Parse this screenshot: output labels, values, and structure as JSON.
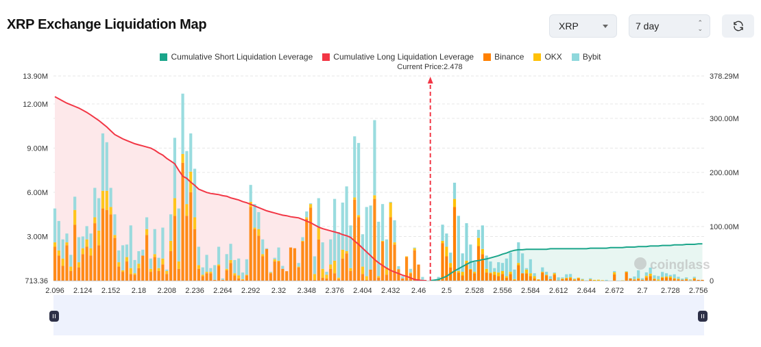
{
  "header": {
    "title": "XRP Exchange Liquidation Map",
    "coin_select": "XRP",
    "range_select": "7 day",
    "refresh_icon": "refresh-icon"
  },
  "legend": [
    {
      "label": "Cumulative Short Liquidation Leverage",
      "color": "#1aa58a"
    },
    {
      "label": "Cumulative Long Liquidation Leverage",
      "color": "#f23645"
    },
    {
      "label": "Binance",
      "color": "#ff8000"
    },
    {
      "label": "OKX",
      "color": "#ffc107"
    },
    {
      "label": "Bybit",
      "color": "#8fd8dc"
    }
  ],
  "current_price_label": "Current Price:2.478",
  "watermark": "coinglass",
  "chart_data": {
    "type": "bar",
    "stacked": true,
    "x_tick_labels": [
      "2.096",
      "2.124",
      "2.152",
      "2.18",
      "2.208",
      "2.236",
      "2.264",
      "2.292",
      "2.32",
      "2.348",
      "2.376",
      "2.404",
      "2.432",
      "2.46",
      "2.5",
      "2.528",
      "2.556",
      "2.584",
      "2.612",
      "2.644",
      "2.672",
      "2.7",
      "2.728",
      "2.756"
    ],
    "left_axis": {
      "unit": "M",
      "range": [
        0.00071336,
        13.9
      ],
      "tick_labels": [
        "713.36",
        "3.00M",
        "6.00M",
        "9.00M",
        "12.00M",
        "13.90M"
      ],
      "tick_values": [
        0.00071336,
        3,
        6,
        9,
        12,
        13.9
      ]
    },
    "right_axis": {
      "unit": "M",
      "range": [
        0,
        378.29
      ],
      "tick_labels": [
        "0",
        "100.00M",
        "200.00M",
        "300.00M",
        "378.29M"
      ],
      "tick_values": [
        0,
        100,
        200,
        300,
        378.29
      ]
    },
    "current_price": 2.478,
    "grid": true,
    "legend_position": "top",
    "series": [
      {
        "name": "Binance",
        "color": "#ff8000",
        "values": [
          2.3,
          1.7,
          1.0,
          2.4,
          0.65,
          3.8,
          0.9,
          1.8,
          2.3,
          1.7,
          3.9,
          2.4,
          4.9,
          4.8,
          4.5,
          2.9,
          0.95,
          0.6,
          1.3,
          0.45,
          0.4,
          0.85,
          1.7,
          3.1,
          0.6,
          1.6,
          0.65,
          1.1,
          0.45,
          2.0,
          4.4,
          0.8,
          8.0,
          4.4,
          6.0,
          3.5,
          0.8,
          0.3,
          0.5,
          0.5,
          0.05,
          1.0,
          0.05,
          0.7,
          1.2,
          0.35,
          0.15,
          0.05,
          0.35,
          5.0,
          3.5,
          3.05,
          1.65,
          2.15,
          0.5,
          1.3,
          1.3,
          0.8,
          0.64,
          2.25,
          2.2,
          0.9,
          2.65,
          4.2,
          4.95,
          0.05,
          2.8,
          0.2,
          0.15,
          0.8,
          0.5,
          0.1,
          1.5,
          1.85,
          0.65,
          5.5,
          4.3,
          0.45,
          0.05,
          0.75,
          5.55,
          0.2,
          2.65,
          0.4,
          4.3,
          2.45,
          0.78,
          0.15,
          1.6,
          0.5,
          2.05,
          1.09,
          0.05,
          0,
          0,
          0,
          0.05,
          2.55,
          1.65,
          0.9,
          5.0,
          0.55,
          0.35,
          1.2,
          0.75,
          0.5,
          2.35,
          1.8,
          0.55,
          0.5,
          0.4,
          0.3,
          0.45,
          0.2,
          0.45,
          0.05,
          1.05,
          0.5,
          0.5,
          0.3,
          0.15,
          0.05,
          0.55,
          0.35,
          0.1,
          0.4,
          0.02,
          0.1,
          0.15,
          0.17,
          0.05,
          0.15,
          0.02,
          0,
          0.06,
          0,
          0,
          0,
          0,
          0,
          0.43,
          0,
          0,
          0.56,
          0.14,
          0.06,
          0.11,
          0.06,
          0.22,
          0.31,
          0.1,
          0,
          0.2,
          0.22,
          0.19,
          0.12,
          0.08,
          0.06,
          0.08,
          0,
          0.12,
          0.05,
          0.05
        ]
      },
      {
        "name": "OKX",
        "color": "#ffc107",
        "values": [
          0.3,
          0.35,
          0.5,
          0.2,
          0.3,
          1.0,
          0.35,
          0.4,
          0.5,
          0.5,
          0.4,
          1.0,
          1.2,
          1.3,
          0.5,
          0.2,
          0.3,
          0.1,
          0.3,
          0.4,
          0.1,
          0.3,
          0,
          0.4,
          0.2,
          0.2,
          0.2,
          0.4,
          0.2,
          0.7,
          1.2,
          0.5,
          0.6,
          0.8,
          1.4,
          0.8,
          0.25,
          0.1,
          0.1,
          0.1,
          0,
          0.1,
          0,
          0.1,
          0.2,
          0.15,
          0.2,
          0.05,
          0.05,
          0.35,
          0.1,
          0.45,
          0.15,
          0,
          0.05,
          0.15,
          0.05,
          0,
          0,
          0,
          0,
          0.05,
          0.05,
          0.1,
          0.25,
          0.4,
          0.8,
          0.6,
          0.25,
          0.3,
          0.85,
          0.1,
          0.6,
          0.15,
          0.2,
          0.15,
          0.15,
          0.5,
          0.25,
          0,
          0.25,
          0.1,
          0.05,
          0.5,
          1.0,
          0.15,
          0,
          0,
          0.05,
          0.05,
          0.15,
          0,
          0,
          0,
          0,
          0,
          0.05,
          0.15,
          0.65,
          0.3,
          0.55,
          0.1,
          0.25,
          0.15,
          0.05,
          0.1,
          0.55,
          0.35,
          0.25,
          0.05,
          0.2,
          0.25,
          0.2,
          0.1,
          0.15,
          0.05,
          0.15,
          0,
          0.25,
          0.2,
          0.15,
          0.04,
          0.05,
          0.05,
          0,
          0.1,
          0,
          0.05,
          0.05,
          0.06,
          0.05,
          0.05,
          0.05,
          0,
          0.03,
          0.05,
          0.06,
          0.03,
          0,
          0,
          0.14,
          0,
          0.02,
          0.05,
          0.02,
          0.03,
          0.05,
          0,
          0.1,
          0.16,
          0.05,
          0.08,
          0.05,
          0.06,
          0.09,
          0.05,
          0.04,
          0,
          0.04,
          0.03,
          0.05,
          0,
          0
        ]
      },
      {
        "name": "Bybit",
        "color": "#8fd8dc",
        "values": [
          2.3,
          2.0,
          1.3,
          0.6,
          0.8,
          0.9,
          1.7,
          0.8,
          0.9,
          1.0,
          2.0,
          2.2,
          3.9,
          3.3,
          1.3,
          1.4,
          0.8,
          1.7,
          0.85,
          2.9,
          0.9,
          0.85,
          0.4,
          0.8,
          0.7,
          1.7,
          0.7,
          2.1,
          0.1,
          1.8,
          4.1,
          3.6,
          4.1,
          3.6,
          2.6,
          3.3,
          1.25,
          0.5,
          1.15,
          0.25,
          1.0,
          1.2,
          0.1,
          1.0,
          1.1,
          0.9,
          1.15,
          0.45,
          1.05,
          1.15,
          1.6,
          1.15,
          1.0,
          0.05,
          0.05,
          0.1,
          0.9,
          0.2,
          0,
          0,
          0,
          0.25,
          0.25,
          0.4,
          0.05,
          1.2,
          2.0,
          1.8,
          0.2,
          1.7,
          4.2,
          3.1,
          3.2,
          4.4,
          2.9,
          4.15,
          4.9,
          2.2,
          4.7,
          4.35,
          5.1,
          3.7,
          2.5,
          1.9,
          0.05,
          1.5,
          0.2,
          0.15,
          0,
          0.25,
          0.05,
          0,
          0.2,
          0,
          0,
          0,
          0.15,
          1.1,
          0.9,
          0.7,
          1.1,
          3.75,
          1.25,
          2.55,
          1.65,
          0.65,
          0.55,
          1.6,
          0.9,
          0.75,
          0.25,
          0.7,
          0.55,
          1.2,
          1.3,
          0.65,
          1.4,
          1.35,
          0.1,
          0.95,
          0.2,
          0,
          0.3,
          0.2,
          0.2,
          0.05,
          0.2,
          0.07,
          0.23,
          0.22,
          0.05,
          0,
          0.05,
          0.02,
          0.07,
          0,
          0,
          0,
          0.05,
          0,
          0.08,
          0.01,
          0,
          0.03,
          0.01,
          0.19,
          0.54,
          0.1,
          0.24,
          0.41,
          0.21,
          0.23,
          0.34,
          0.22,
          0.11,
          0.26,
          0.14,
          0.08,
          0.1,
          0.06,
          0.09,
          0,
          0
        ]
      },
      {
        "name": "Cumulative Long Liquidation Leverage",
        "axis": "right",
        "align": "start",
        "color": "#f23645",
        "values": [
          340,
          336,
          332,
          328,
          325,
          322,
          319,
          315,
          311,
          306,
          301,
          296,
          290,
          284,
          277,
          270,
          266,
          262,
          259,
          256,
          253,
          251,
          249,
          247,
          245,
          241,
          236,
          232,
          226,
          221,
          216,
          204,
          193,
          189,
          182,
          176,
          169,
          166,
          163,
          161,
          160,
          159,
          157,
          156,
          153,
          151,
          149,
          146,
          144,
          141,
          138,
          135,
          132,
          129,
          127,
          125,
          123,
          121,
          120,
          118,
          117,
          116,
          113,
          110,
          107,
          103,
          99,
          96,
          94,
          92,
          90,
          88,
          85,
          83,
          80,
          73,
          67,
          60,
          53,
          46,
          39,
          33,
          28,
          23,
          19,
          16,
          13,
          10,
          8,
          5,
          2,
          1,
          0,
          0
        ]
      },
      {
        "name": "Cumulative Short Liquidation Leverage",
        "axis": "right",
        "align": "end",
        "color": "#1aa58a",
        "values": [
          0,
          1,
          2,
          5,
          8,
          13,
          18,
          22,
          26,
          30,
          34,
          36,
          37,
          39,
          40,
          42,
          44,
          46,
          49,
          51,
          54,
          56,
          57,
          57,
          58,
          58,
          58,
          58,
          58,
          58,
          59,
          59,
          59,
          59,
          59,
          59,
          59,
          59,
          59,
          59,
          60,
          60,
          60,
          60,
          60,
          61,
          61,
          61,
          61,
          62,
          62,
          62,
          63,
          63,
          63,
          64,
          64,
          64,
          65,
          65,
          65,
          66,
          66,
          66,
          67,
          67,
          67,
          68,
          68
        ]
      }
    ]
  }
}
